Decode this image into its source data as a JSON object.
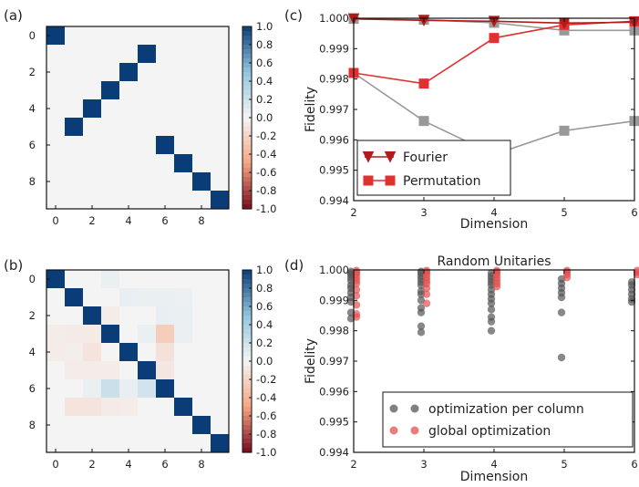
{
  "colors": {
    "heat_high": "#0a3d78",
    "heat_mid": "#f4f4f4",
    "heat_low": "#7a0a1f",
    "fourier": "#b01b1b",
    "permutation": "#e03030",
    "gray_series": "#999999",
    "dot_gray": "#555555",
    "dot_red": "#e25050"
  },
  "chart_data": [
    {
      "panel_label": "(a)",
      "type": "heatmap",
      "size": 10,
      "x_ticks": [
        "0",
        "2",
        "4",
        "6",
        "8"
      ],
      "y_ticks": [
        "0",
        "2",
        "4",
        "6",
        "8"
      ],
      "colorbar": {
        "min": -1.0,
        "max": 1.0,
        "ticks": [
          "1.0",
          "0.8",
          "0.6",
          "0.4",
          "0.2",
          "0.0",
          "-0.2",
          "-0.4",
          "-0.6",
          "-0.8",
          "-1.0"
        ]
      },
      "cells": [
        {
          "row": 0,
          "col": 0,
          "value": 1.0
        },
        {
          "row": 1,
          "col": 5,
          "value": 1.0
        },
        {
          "row": 2,
          "col": 4,
          "value": 1.0
        },
        {
          "row": 3,
          "col": 3,
          "value": 1.0
        },
        {
          "row": 4,
          "col": 2,
          "value": 1.0
        },
        {
          "row": 5,
          "col": 1,
          "value": 1.0
        },
        {
          "row": 6,
          "col": 6,
          "value": 1.0
        },
        {
          "row": 7,
          "col": 7,
          "value": 1.0
        },
        {
          "row": 8,
          "col": 8,
          "value": 1.0
        },
        {
          "row": 9,
          "col": 9,
          "value": 1.0
        }
      ]
    },
    {
      "panel_label": "(b)",
      "type": "heatmap",
      "size": 10,
      "x_ticks": [
        "0",
        "2",
        "4",
        "6",
        "8"
      ],
      "y_ticks": [
        "0",
        "2",
        "4",
        "6",
        "8"
      ],
      "colorbar": {
        "min": -1.0,
        "max": 1.0,
        "ticks": [
          "1.0",
          "0.8",
          "0.6",
          "0.4",
          "0.2",
          "0.0",
          "-0.2",
          "-0.4",
          "-0.6",
          "-0.8",
          "-1.0"
        ]
      },
      "cells": [
        {
          "row": 0,
          "col": 0,
          "value": 1.0
        },
        {
          "row": 1,
          "col": 1,
          "value": 1.0
        },
        {
          "row": 2,
          "col": 2,
          "value": 1.0
        },
        {
          "row": 3,
          "col": 3,
          "value": 1.0
        },
        {
          "row": 4,
          "col": 4,
          "value": 1.0
        },
        {
          "row": 5,
          "col": 5,
          "value": 1.0
        },
        {
          "row": 6,
          "col": 6,
          "value": 1.0
        },
        {
          "row": 7,
          "col": 7,
          "value": 1.0
        },
        {
          "row": 8,
          "col": 8,
          "value": 1.0
        },
        {
          "row": 9,
          "col": 9,
          "value": 1.0
        },
        {
          "row": 0,
          "col": 3,
          "value": 0.05
        },
        {
          "row": 1,
          "col": 4,
          "value": 0.06
        },
        {
          "row": 1,
          "col": 5,
          "value": 0.05
        },
        {
          "row": 1,
          "col": 6,
          "value": 0.05
        },
        {
          "row": 1,
          "col": 7,
          "value": 0.04
        },
        {
          "row": 2,
          "col": 3,
          "value": -0.05
        },
        {
          "row": 2,
          "col": 6,
          "value": 0.06
        },
        {
          "row": 2,
          "col": 7,
          "value": 0.05
        },
        {
          "row": 3,
          "col": 0,
          "value": -0.05
        },
        {
          "row": 3,
          "col": 1,
          "value": -0.06
        },
        {
          "row": 3,
          "col": 2,
          "value": -0.06
        },
        {
          "row": 3,
          "col": 5,
          "value": 0.05
        },
        {
          "row": 3,
          "col": 6,
          "value": -0.25
        },
        {
          "row": 3,
          "col": 7,
          "value": 0.05
        },
        {
          "row": 4,
          "col": 0,
          "value": -0.05
        },
        {
          "row": 4,
          "col": 1,
          "value": -0.04
        },
        {
          "row": 4,
          "col": 2,
          "value": -0.1
        },
        {
          "row": 4,
          "col": 6,
          "value": -0.12
        },
        {
          "row": 5,
          "col": 1,
          "value": -0.05
        },
        {
          "row": 5,
          "col": 2,
          "value": -0.05
        },
        {
          "row": 5,
          "col": 3,
          "value": -0.05
        },
        {
          "row": 5,
          "col": 6,
          "value": -0.08
        },
        {
          "row": 6,
          "col": 2,
          "value": 0.05
        },
        {
          "row": 6,
          "col": 3,
          "value": 0.22
        },
        {
          "row": 6,
          "col": 4,
          "value": 0.06
        },
        {
          "row": 6,
          "col": 5,
          "value": 0.18
        },
        {
          "row": 7,
          "col": 1,
          "value": -0.1
        },
        {
          "row": 7,
          "col": 2,
          "value": -0.1
        },
        {
          "row": 7,
          "col": 3,
          "value": -0.06
        },
        {
          "row": 7,
          "col": 4,
          "value": -0.05
        }
      ]
    },
    {
      "panel_label": "(c)",
      "type": "line",
      "xlabel": "Dimension",
      "ylabel": "Fidelity",
      "xlim": [
        2,
        6
      ],
      "ylim": [
        0.994,
        1.0
      ],
      "x_ticks": [
        "2",
        "3",
        "4",
        "5",
        "6"
      ],
      "y_ticks": [
        "1.000",
        "0.999",
        "0.998",
        "0.997",
        "0.996",
        "0.995",
        "0.994"
      ],
      "legend_position": "bottom-left",
      "x": [
        2,
        3,
        4,
        5,
        6
      ],
      "series": [
        {
          "name": "Fourier",
          "marker": "triangle-down",
          "color": "#b01b1b",
          "values": [
            0.99998,
            0.99993,
            0.9999,
            0.99984,
            0.99987
          ]
        },
        {
          "name": "Permutation",
          "marker": "square",
          "color": "#e03030",
          "values": [
            0.9982,
            0.99785,
            0.99935,
            0.99978,
            0.9999
          ]
        },
        {
          "marker": "square",
          "color": "#999999",
          "values": [
            0.9982,
            0.99662,
            0.99552,
            0.9963,
            0.99662
          ]
        },
        {
          "marker": "square",
          "color": "#999999",
          "values": [
            0.99998,
            0.99995,
            0.99985,
            0.9996,
            0.9996
          ]
        }
      ]
    },
    {
      "panel_label": "(d)",
      "type": "scatter",
      "title": "Random Unitaries",
      "xlabel": "Dimension",
      "ylabel": "Fidelity",
      "xlim": [
        2,
        6
      ],
      "ylim": [
        0.994,
        1.0
      ],
      "x_ticks": [
        "2",
        "3",
        "4",
        "5",
        "6"
      ],
      "y_ticks": [
        "1.000",
        "0.999",
        "0.998",
        "0.997",
        "0.996",
        "0.995",
        "0.994"
      ],
      "legend_position": "bottom-right",
      "series": [
        {
          "name": "optimization per column",
          "color": "#555555",
          "points": [
            [
              2,
              0.99995
            ],
            [
              2,
              0.9999
            ],
            [
              2,
              0.99985
            ],
            [
              2,
              0.99975
            ],
            [
              2,
              0.99965
            ],
            [
              2,
              0.9995
            ],
            [
              2,
              0.9994
            ],
            [
              2,
              0.99925
            ],
            [
              2,
              0.9991
            ],
            [
              2,
              0.99895
            ],
            [
              2,
              0.9986
            ],
            [
              2,
              0.9984
            ],
            [
              3,
              0.99995
            ],
            [
              3,
              0.9999
            ],
            [
              3,
              0.9998
            ],
            [
              3,
              0.9997
            ],
            [
              3,
              0.9996
            ],
            [
              3,
              0.9995
            ],
            [
              3,
              0.9993
            ],
            [
              3,
              0.9992
            ],
            [
              3,
              0.999
            ],
            [
              3,
              0.99875
            ],
            [
              3,
              0.9986
            ],
            [
              3,
              0.99815
            ],
            [
              3,
              0.99795
            ],
            [
              4,
              0.9999
            ],
            [
              4,
              0.9998
            ],
            [
              4,
              0.9997
            ],
            [
              4,
              0.9996
            ],
            [
              4,
              0.9995
            ],
            [
              4,
              0.99935
            ],
            [
              4,
              0.9992
            ],
            [
              4,
              0.99905
            ],
            [
              4,
              0.9989
            ],
            [
              4,
              0.9987
            ],
            [
              4,
              0.99845
            ],
            [
              4,
              0.9983
            ],
            [
              4,
              0.998
            ],
            [
              5,
              0.9997
            ],
            [
              5,
              0.99955
            ],
            [
              5,
              0.9994
            ],
            [
              5,
              0.99925
            ],
            [
              5,
              0.9991
            ],
            [
              5,
              0.9986
            ],
            [
              5,
              0.99712
            ],
            [
              6,
              0.9996
            ],
            [
              6,
              0.9995
            ],
            [
              6,
              0.99935
            ],
            [
              6,
              0.9992
            ],
            [
              6,
              0.99905
            ],
            [
              6,
              0.99895
            ]
          ]
        },
        {
          "name": "global optimization",
          "color": "#e25050",
          "points": [
            [
              2,
              0.99998
            ],
            [
              2,
              0.99992
            ],
            [
              2,
              0.99985
            ],
            [
              2,
              0.99975
            ],
            [
              2,
              0.99965
            ],
            [
              2,
              0.99955
            ],
            [
              2,
              0.99935
            ],
            [
              2,
              0.99915
            ],
            [
              2,
              0.99885
            ],
            [
              2,
              0.99855
            ],
            [
              2,
              0.99845
            ],
            [
              3,
              0.99998
            ],
            [
              3,
              0.99993
            ],
            [
              3,
              0.99985
            ],
            [
              3,
              0.99975
            ],
            [
              3,
              0.99965
            ],
            [
              3,
              0.99955
            ],
            [
              3,
              0.9994
            ],
            [
              3,
              0.9992
            ],
            [
              3,
              0.9989
            ],
            [
              4,
              0.99998
            ],
            [
              4,
              0.99993
            ],
            [
              4,
              0.99985
            ],
            [
              4,
              0.99975
            ],
            [
              4,
              0.99965
            ],
            [
              4,
              0.99955
            ],
            [
              4,
              0.99945
            ],
            [
              5,
              0.99998
            ],
            [
              5,
              0.99993
            ],
            [
              5,
              0.99985
            ],
            [
              5,
              0.99975
            ],
            [
              6,
              0.99998
            ],
            [
              6,
              0.99992
            ],
            [
              6,
              0.99985
            ]
          ]
        }
      ]
    }
  ]
}
